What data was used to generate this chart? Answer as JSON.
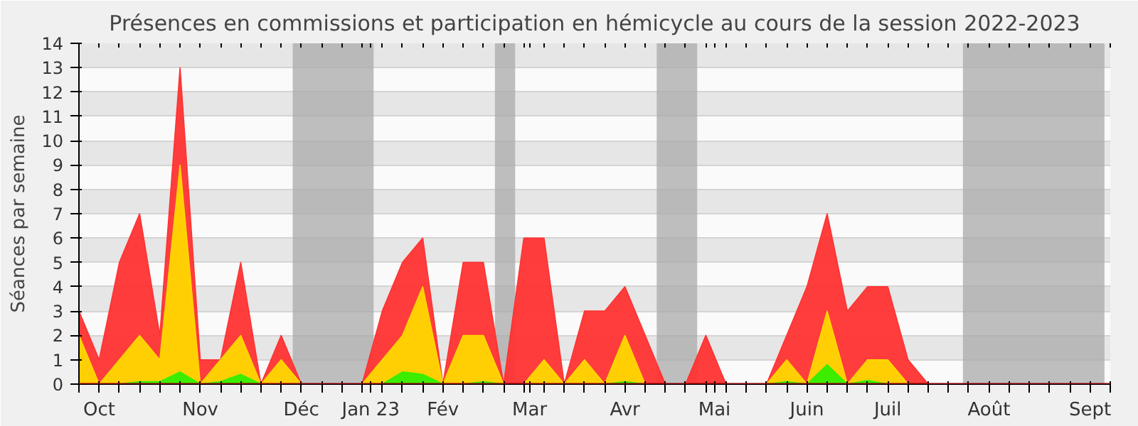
{
  "chart_data": {
    "type": "area",
    "title": "Présences en commissions et participation en hémicycle au cours de la session 2022-2023",
    "ylabel": "Séances par semaine",
    "x": [
      "2022-09-26",
      "2022-10-03",
      "2022-10-10",
      "2022-10-17",
      "2022-10-24",
      "2022-10-31",
      "2022-11-07",
      "2022-11-14",
      "2022-11-21",
      "2022-11-28",
      "2022-12-05",
      "2022-12-12",
      "2022-12-19",
      "2022-12-26",
      "2023-01-02",
      "2023-01-09",
      "2023-01-16",
      "2023-01-23",
      "2023-01-30",
      "2023-02-06",
      "2023-02-13",
      "2023-02-20",
      "2023-02-27",
      "2023-03-06",
      "2023-03-13",
      "2023-03-20",
      "2023-03-27",
      "2023-04-03",
      "2023-04-10",
      "2023-04-17",
      "2023-04-24",
      "2023-05-01",
      "2023-05-08",
      "2023-05-15",
      "2023-05-22",
      "2023-05-29",
      "2023-06-05",
      "2023-06-12",
      "2023-06-19",
      "2023-06-26",
      "2023-07-03",
      "2023-07-10",
      "2023-07-17",
      "2023-07-24",
      "2023-07-31",
      "2023-08-07",
      "2023-08-14",
      "2023-08-21",
      "2023-08-28",
      "2023-09-04",
      "2023-09-11",
      "2023-09-18"
    ],
    "series": [
      {
        "color": "#ff3333",
        "values": [
          3,
          1,
          5,
          7,
          2,
          13,
          1,
          1,
          5,
          0,
          2,
          0,
          0,
          0,
          0,
          3,
          5,
          6,
          0,
          5,
          5,
          0,
          6,
          6,
          0,
          3,
          3,
          4,
          2,
          0,
          0,
          2,
          0,
          0,
          0,
          2,
          4,
          7,
          3,
          4,
          4,
          1,
          0,
          0,
          0,
          0,
          0,
          0,
          0,
          0,
          0,
          0
        ]
      },
      {
        "color": "#ffd700",
        "values": [
          2,
          0,
          1,
          2,
          1,
          9,
          0,
          1,
          2,
          0,
          1,
          0,
          0,
          0,
          0,
          1,
          2,
          4,
          0,
          2,
          2,
          0,
          0,
          1,
          0,
          1,
          0,
          2,
          0,
          0,
          0,
          0,
          0,
          0,
          0,
          1,
          0,
          3,
          0,
          1,
          1,
          0,
          0,
          0,
          0,
          0,
          0,
          0,
          0,
          0,
          0,
          0
        ]
      },
      {
        "color": "#33ee00",
        "values": [
          0,
          0,
          0,
          0.1,
          0.1,
          0.5,
          0,
          0.1,
          0.4,
          0,
          0,
          0,
          0,
          0,
          0,
          0,
          0.5,
          0.4,
          0,
          0,
          0.1,
          0,
          0,
          0,
          0,
          0,
          0,
          0.1,
          0,
          0,
          0,
          0,
          0,
          0,
          0,
          0.1,
          0,
          0.8,
          0,
          0.15,
          0,
          0,
          0,
          0,
          0,
          0,
          0,
          0,
          0,
          0,
          0,
          0
        ]
      }
    ],
    "xlim": [
      "2022-09-26",
      "2023-09-18"
    ],
    "xticks": [
      {
        "value": "2022-09-26",
        "label": null
      },
      {
        "value": "2022-10-03",
        "label": "Oct"
      },
      {
        "value": "2022-10-10",
        "label": null
      },
      {
        "value": "2022-10-17",
        "label": null
      },
      {
        "value": "2022-10-24",
        "label": null
      },
      {
        "value": "2022-10-31",
        "label": null
      },
      {
        "value": "2022-11-07",
        "label": "Nov"
      },
      {
        "value": "2022-11-14",
        "label": null
      },
      {
        "value": "2022-11-21",
        "label": null
      },
      {
        "value": "2022-11-28",
        "label": null
      },
      {
        "value": "2022-12-05",
        "label": null
      },
      {
        "value": "2022-12-12",
        "label": "Déc"
      },
      {
        "value": "2022-12-19",
        "label": null
      },
      {
        "value": "2022-12-26",
        "label": null
      },
      {
        "value": "2023-01-02",
        "label": null
      },
      {
        "value": "2023-01-05",
        "label": "Jan 23"
      },
      {
        "value": "2023-01-09",
        "label": null
      },
      {
        "value": "2023-01-16",
        "label": null
      },
      {
        "value": "2023-01-23",
        "label": null
      },
      {
        "value": "2023-01-30",
        "label": "Fév"
      },
      {
        "value": "2023-02-06",
        "label": null
      },
      {
        "value": "2023-02-13",
        "label": null
      },
      {
        "value": "2023-02-20",
        "label": null
      },
      {
        "value": "2023-02-27",
        "label": null
      },
      {
        "value": "2023-03-01",
        "label": "Mar"
      },
      {
        "value": "2023-03-06",
        "label": null
      },
      {
        "value": "2023-03-13",
        "label": null
      },
      {
        "value": "2023-03-20",
        "label": null
      },
      {
        "value": "2023-03-27",
        "label": null
      },
      {
        "value": "2023-04-03",
        "label": "Avr"
      },
      {
        "value": "2023-04-10",
        "label": null
      },
      {
        "value": "2023-04-17",
        "label": null
      },
      {
        "value": "2023-04-24",
        "label": null
      },
      {
        "value": "2023-05-01",
        "label": null
      },
      {
        "value": "2023-05-04",
        "label": "Mai"
      },
      {
        "value": "2023-05-08",
        "label": null
      },
      {
        "value": "2023-05-15",
        "label": null
      },
      {
        "value": "2023-05-22",
        "label": null
      },
      {
        "value": "2023-05-29",
        "label": null
      },
      {
        "value": "2023-06-05",
        "label": "Juin"
      },
      {
        "value": "2023-06-12",
        "label": null
      },
      {
        "value": "2023-06-19",
        "label": null
      },
      {
        "value": "2023-06-26",
        "label": null
      },
      {
        "value": "2023-07-03",
        "label": "Juil"
      },
      {
        "value": "2023-07-10",
        "label": null
      },
      {
        "value": "2023-07-17",
        "label": null
      },
      {
        "value": "2023-07-24",
        "label": null
      },
      {
        "value": "2023-07-31",
        "label": null
      },
      {
        "value": "2023-08-07",
        "label": "Août"
      },
      {
        "value": "2023-08-14",
        "label": null
      },
      {
        "value": "2023-08-21",
        "label": null
      },
      {
        "value": "2023-08-28",
        "label": null
      },
      {
        "value": "2023-09-04",
        "label": null
      },
      {
        "value": "2023-09-11",
        "label": "Sept"
      },
      {
        "value": "2023-09-18",
        "label": null
      }
    ],
    "ylim": [
      0,
      14
    ],
    "yticks": [
      0,
      1,
      2,
      3,
      4,
      5,
      6,
      7,
      8,
      9,
      10,
      11,
      12,
      13,
      14
    ],
    "grid": "y",
    "bands": [
      {
        "axis": "x",
        "from": "2022-12-09",
        "to": "2023-01-06",
        "color": "#aaaaaa"
      },
      {
        "axis": "x",
        "from": "2023-02-17",
        "to": "2023-02-24",
        "color": "#aaaaaa"
      },
      {
        "axis": "x",
        "from": "2023-04-14",
        "to": "2023-04-28",
        "color": "#aaaaaa"
      },
      {
        "axis": "x",
        "from": "2023-07-29",
        "to": "2023-09-16",
        "color": "#aaaaaa"
      }
    ]
  }
}
